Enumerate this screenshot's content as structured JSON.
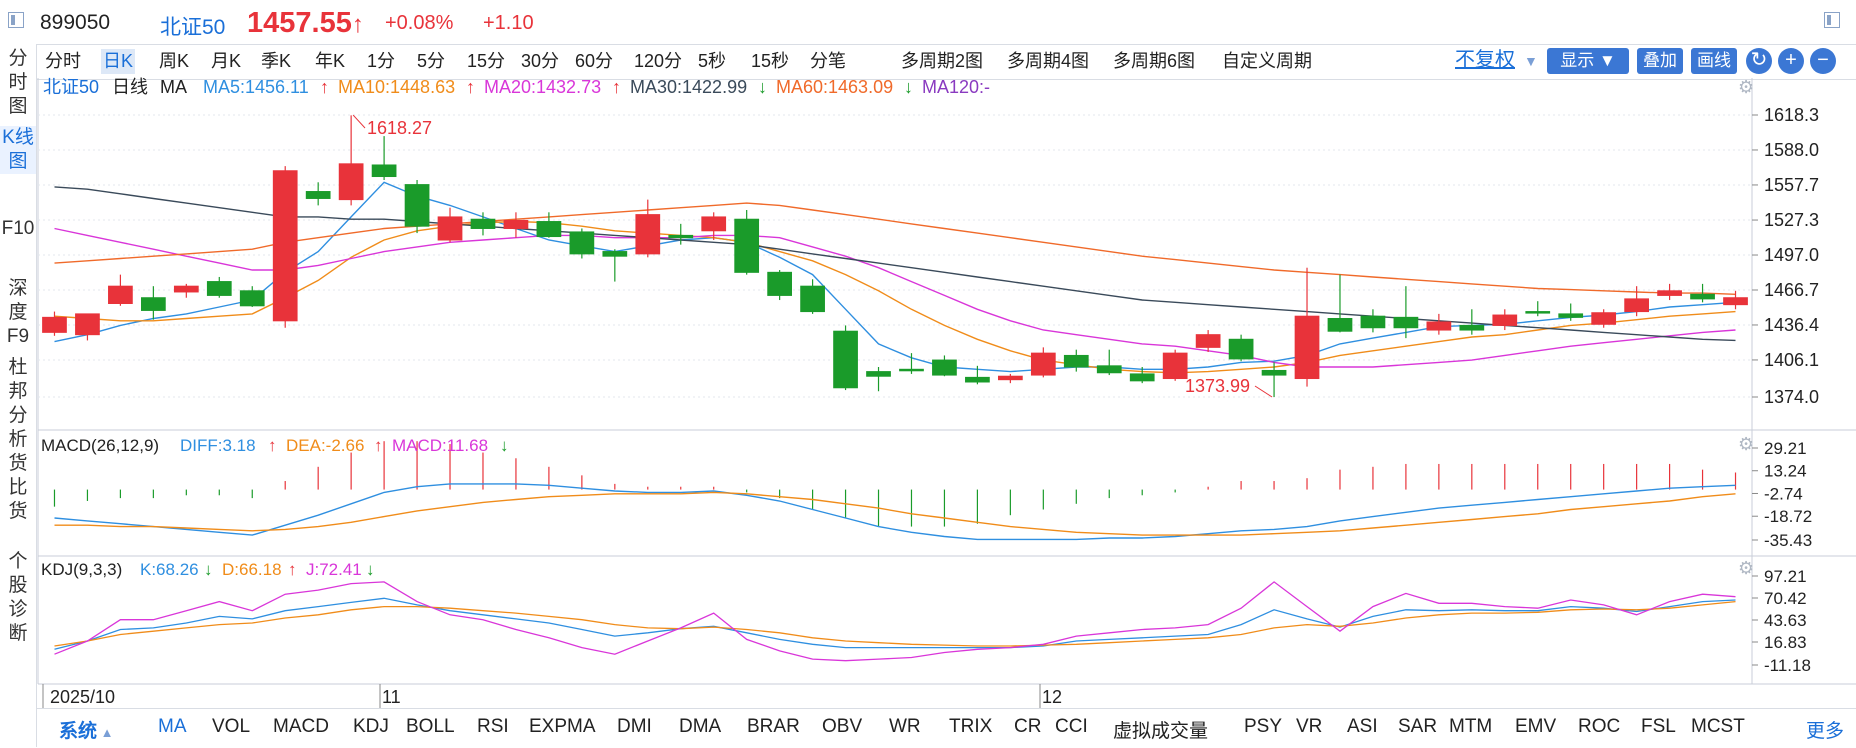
{
  "title_bar": {
    "code": "899050",
    "name": "北证50",
    "price": "1457.55",
    "change_pct": "+0.08%",
    "change_abs": "+1.10"
  },
  "left_tabs": [
    "分时图",
    "K线图",
    "F10",
    "深度F9",
    "杜邦分析",
    "货比货",
    "个股诊断"
  ],
  "periods": [
    "分时",
    "日K",
    "周K",
    "月K",
    "季K",
    "年K",
    "1分",
    "5分",
    "15分",
    "30分",
    "60分",
    "120分",
    "5秒",
    "15秒",
    "分笔",
    "多周期2图",
    "多周期4图",
    "多周期6图",
    "自定义周期"
  ],
  "active_period": "日K",
  "toolbar_right": {
    "fuquan": "不复权",
    "show": "显示",
    "overlay": "叠加",
    "draw": "画线"
  },
  "legend": {
    "name": "北证50",
    "period": "日线",
    "ma": "MA",
    "ma5": "MA5:1456.11",
    "ma10": "MA10:1448.63",
    "ma20": "MA20:1432.73",
    "ma30": "MA30:1422.99",
    "ma60": "MA60:1463.09",
    "ma120": "MA120:-"
  },
  "annotations": {
    "high": "1618.27",
    "low": "1373.99"
  },
  "price_axis": [
    "1618.3",
    "1588.0",
    "1557.7",
    "1527.3",
    "1497.0",
    "1466.7",
    "1436.4",
    "1406.1",
    "1374.0"
  ],
  "macd": {
    "title": "MACD(26,12,9)",
    "diff": "DIFF:3.18",
    "dea": "DEA:-2.66",
    "macd": "MACD:11.68",
    "axis": [
      "29.21",
      "13.24",
      "-2.74",
      "-18.72",
      "-35.43"
    ]
  },
  "kdj": {
    "title": "KDJ(9,3,3)",
    "k": "K:68.26",
    "d": "D:66.18",
    "j": "J:72.41",
    "axis": [
      "97.21",
      "70.42",
      "43.63",
      "16.83",
      "-11.18"
    ]
  },
  "date_labels": [
    "2025/10",
    "11",
    "12"
  ],
  "bottom_tabs": {
    "system": "系统",
    "items": [
      "MA",
      "VOL",
      "MACD",
      "KDJ",
      "BOLL",
      "RSI",
      "EXPMA",
      "DMI",
      "DMA",
      "BRAR",
      "OBV",
      "WR",
      "TRIX",
      "CR",
      "CCI",
      "虚拟成交量",
      "PSY",
      "VR",
      "ASI",
      "SAR",
      "MTM",
      "EMV",
      "ROC",
      "FSL",
      "MCST"
    ],
    "more": "更多"
  },
  "colors": {
    "up": "#e8333a",
    "down": "#1a9b2a",
    "ma5": "#2f8fe0",
    "ma10": "#f08c1a",
    "ma20": "#d936d9",
    "ma30": "#3a4a5a",
    "ma60": "#f06a2a",
    "ma120": "#8a3ac0",
    "accent": "#1a6fd8"
  },
  "chart_data": {
    "type": "candlestick",
    "ohlc": [
      [
        1430,
        1443,
        1427,
        1448
      ],
      [
        1428,
        1446,
        1423,
        1446
      ],
      [
        1455,
        1470,
        1453,
        1480
      ],
      [
        1460,
        1449,
        1441,
        1470
      ],
      [
        1465,
        1470,
        1460,
        1472
      ],
      [
        1474,
        1462,
        1460,
        1478
      ],
      [
        1466,
        1453,
        1452,
        1470
      ],
      [
        1440,
        1570,
        1434,
        1574
      ],
      [
        1552,
        1546,
        1540,
        1560
      ],
      [
        1545,
        1576,
        1540,
        1618
      ],
      [
        1575,
        1565,
        1562,
        1600
      ],
      [
        1558,
        1522,
        1516,
        1562
      ],
      [
        1510,
        1530,
        1508,
        1538
      ],
      [
        1528,
        1520,
        1514,
        1534
      ],
      [
        1520,
        1527,
        1512,
        1534
      ],
      [
        1526,
        1513,
        1512,
        1534
      ],
      [
        1517,
        1498,
        1494,
        1520
      ],
      [
        1500,
        1496,
        1474,
        1502
      ],
      [
        1498,
        1532,
        1495,
        1545
      ],
      [
        1514,
        1512,
        1506,
        1524
      ],
      [
        1518,
        1530,
        1510,
        1534
      ],
      [
        1528,
        1482,
        1480,
        1536
      ],
      [
        1482,
        1462,
        1458,
        1484
      ],
      [
        1470,
        1448,
        1446,
        1476
      ],
      [
        1431,
        1382,
        1380,
        1436
      ],
      [
        1396,
        1392,
        1379,
        1400
      ],
      [
        1398,
        1397,
        1394,
        1412
      ],
      [
        1406,
        1393,
        1392,
        1410
      ],
      [
        1391,
        1387,
        1385,
        1401
      ],
      [
        1389,
        1392,
        1386,
        1394
      ],
      [
        1393,
        1412,
        1391,
        1417
      ],
      [
        1410,
        1400,
        1396,
        1415
      ],
      [
        1401,
        1395,
        1393,
        1415
      ],
      [
        1394,
        1388,
        1386,
        1400
      ],
      [
        1390,
        1412,
        1388,
        1415
      ],
      [
        1417,
        1428,
        1413,
        1432
      ],
      [
        1424,
        1407,
        1405,
        1428
      ],
      [
        1397,
        1393,
        1374,
        1404
      ],
      [
        1390,
        1444,
        1383,
        1486
      ],
      [
        1442,
        1431,
        1430,
        1480
      ],
      [
        1444,
        1434,
        1430,
        1450
      ],
      [
        1443,
        1434,
        1425,
        1470
      ],
      [
        1432,
        1439,
        1428,
        1446
      ],
      [
        1436,
        1432,
        1428,
        1450
      ],
      [
        1436,
        1445,
        1432,
        1450
      ],
      [
        1448,
        1447,
        1444,
        1457
      ],
      [
        1446,
        1443,
        1440,
        1455
      ],
      [
        1437,
        1447,
        1434,
        1450
      ],
      [
        1448,
        1459,
        1444,
        1470
      ],
      [
        1462,
        1466,
        1458,
        1472
      ],
      [
        1463,
        1459,
        1456,
        1472
      ],
      [
        1454,
        1460,
        1450,
        1466
      ]
    ],
    "ma": {
      "MA5": [
        1422,
        1428,
        1436,
        1442,
        1446,
        1452,
        1458,
        1482,
        1500,
        1530,
        1560,
        1548,
        1540,
        1530,
        1520,
        1510,
        1505,
        1500,
        1505,
        1510,
        1512,
        1508,
        1495,
        1480,
        1450,
        1420,
        1408,
        1400,
        1398,
        1396,
        1398,
        1400,
        1400,
        1398,
        1398,
        1400,
        1404,
        1405,
        1410,
        1420,
        1425,
        1430,
        1435,
        1436,
        1437,
        1440,
        1443,
        1445,
        1448,
        1452,
        1454,
        1456
      ],
      "MA10": [
        1444,
        1442,
        1440,
        1440,
        1442,
        1444,
        1446,
        1460,
        1475,
        1495,
        1510,
        1518,
        1522,
        1525,
        1526,
        1525,
        1522,
        1518,
        1516,
        1514,
        1512,
        1508,
        1500,
        1492,
        1480,
        1466,
        1450,
        1436,
        1424,
        1414,
        1406,
        1402,
        1398,
        1396,
        1395,
        1396,
        1398,
        1400,
        1404,
        1410,
        1414,
        1418,
        1422,
        1426,
        1428,
        1432,
        1436,
        1438,
        1441,
        1444,
        1446,
        1448
      ],
      "MA20": [
        1520,
        1514,
        1508,
        1502,
        1496,
        1490,
        1484,
        1484,
        1488,
        1494,
        1500,
        1504,
        1508,
        1510,
        1512,
        1514,
        1514,
        1512,
        1512,
        1512,
        1514,
        1514,
        1512,
        1504,
        1496,
        1486,
        1474,
        1462,
        1450,
        1440,
        1432,
        1428,
        1424,
        1420,
        1418,
        1414,
        1410,
        1404,
        1400,
        1400,
        1400,
        1402,
        1404,
        1406,
        1410,
        1414,
        1418,
        1421,
        1424,
        1427,
        1430,
        1432
      ],
      "MA30": [
        1556,
        1554,
        1550,
        1546,
        1542,
        1538,
        1534,
        1530,
        1530,
        1528,
        1528,
        1526,
        1524,
        1522,
        1520,
        1518,
        1516,
        1514,
        1512,
        1510,
        1508,
        1506,
        1502,
        1498,
        1494,
        1490,
        1486,
        1482,
        1478,
        1474,
        1470,
        1466,
        1462,
        1458,
        1456,
        1454,
        1452,
        1450,
        1448,
        1446,
        1444,
        1442,
        1440,
        1438,
        1436,
        1434,
        1432,
        1430,
        1428,
        1426,
        1424,
        1423
      ],
      "MA60": [
        1490,
        1492,
        1494,
        1496,
        1498,
        1500,
        1502,
        1508,
        1512,
        1516,
        1520,
        1522,
        1524,
        1526,
        1528,
        1530,
        1532,
        1534,
        1536,
        1538,
        1540,
        1542,
        1540,
        1536,
        1532,
        1528,
        1524,
        1520,
        1516,
        1512,
        1508,
        1504,
        1500,
        1496,
        1493,
        1490,
        1487,
        1484,
        1482,
        1480,
        1478,
        1476,
        1474,
        1472,
        1470,
        1468,
        1467,
        1466,
        1465,
        1464,
        1464,
        1463
      ]
    },
    "macd": {
      "diff": [
        -20,
        -22,
        -24,
        -26,
        -28,
        -30,
        -32,
        -25,
        -18,
        -10,
        -2,
        2,
        4,
        4,
        4,
        3,
        1,
        -1,
        -2,
        -2,
        -1,
        -4,
        -8,
        -14,
        -20,
        -26,
        -30,
        -33,
        -35,
        -35,
        -35,
        -35,
        -34,
        -34,
        -33,
        -31,
        -29,
        -28,
        -26,
        -22,
        -19,
        -16,
        -13,
        -11,
        -9,
        -7,
        -5,
        -3,
        -1,
        1,
        2,
        3
      ],
      "dea": [
        -25,
        -25,
        -26,
        -26,
        -27,
        -28,
        -29,
        -28,
        -26,
        -23,
        -19,
        -15,
        -12,
        -9,
        -7,
        -5,
        -4,
        -3,
        -3,
        -3,
        -2,
        -3,
        -5,
        -7,
        -10,
        -13,
        -17,
        -20,
        -23,
        -26,
        -28,
        -30,
        -31,
        -32,
        -32,
        -32,
        -32,
        -31,
        -30,
        -29,
        -27,
        -25,
        -23,
        -21,
        -19,
        -17,
        -14,
        -12,
        -10,
        -8,
        -5,
        -3
      ],
      "hist": [
        -12,
        -8,
        -6,
        -6,
        -4,
        -4,
        -6,
        6,
        16,
        26,
        34,
        34,
        32,
        26,
        22,
        16,
        10,
        4,
        2,
        2,
        2,
        -2,
        -6,
        -14,
        -20,
        -26,
        -26,
        -26,
        -24,
        -18,
        -14,
        -10,
        -6,
        -4,
        -2,
        2,
        6,
        6,
        8,
        14,
        16,
        18,
        18,
        18,
        18,
        18,
        18,
        18,
        18,
        18,
        14,
        12
      ]
    },
    "kdj": {
      "k": [
        8,
        18,
        32,
        34,
        40,
        48,
        45,
        55,
        60,
        65,
        70,
        62,
        55,
        50,
        45,
        40,
        32,
        24,
        28,
        33,
        36,
        28,
        20,
        14,
        10,
        10,
        10,
        10,
        10,
        10,
        12,
        18,
        20,
        22,
        24,
        26,
        38,
        56,
        45,
        35,
        48,
        56,
        55,
        56,
        55,
        55,
        60,
        58,
        54,
        60,
        66,
        68
      ],
      "d": [
        12,
        18,
        26,
        30,
        34,
        38,
        40,
        46,
        50,
        56,
        60,
        60,
        58,
        55,
        52,
        48,
        44,
        38,
        34,
        33,
        35,
        32,
        28,
        22,
        18,
        16,
        14,
        13,
        12,
        12,
        13,
        14,
        16,
        18,
        20,
        22,
        26,
        34,
        38,
        36,
        40,
        46,
        50,
        52,
        52,
        53,
        56,
        57,
        56,
        58,
        62,
        66
      ],
      "j": [
        2,
        18,
        44,
        44,
        55,
        66,
        55,
        75,
        80,
        88,
        90,
        66,
        50,
        44,
        32,
        22,
        10,
        2,
        18,
        34,
        52,
        20,
        6,
        -4,
        -6,
        -4,
        -2,
        4,
        8,
        10,
        14,
        24,
        28,
        32,
        34,
        38,
        58,
        90,
        60,
        30,
        60,
        76,
        64,
        64,
        60,
        58,
        68,
        62,
        50,
        66,
        75,
        72
      ]
    }
  }
}
